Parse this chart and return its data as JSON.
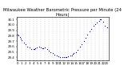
{
  "title": "Milwaukee Weather Barometric Pressure per Minute (24 Hours)",
  "title_fontsize": 3.8,
  "dot_color": "#0000cc",
  "dot_size": 0.8,
  "background_color": "#ffffff",
  "grid_color": "#aaaaaa",
  "xlabel_fontsize": 2.8,
  "ylabel_fontsize": 2.8,
  "ylim": [
    29.35,
    30.15
  ],
  "yticks": [
    29.4,
    29.5,
    29.6,
    29.7,
    29.8,
    29.9,
    30.0,
    30.1
  ],
  "x_hours": [
    0,
    1,
    2,
    3,
    4,
    5,
    6,
    7,
    8,
    9,
    10,
    11,
    12,
    13,
    14,
    15,
    16,
    17,
    18,
    19,
    20,
    21,
    22,
    23
  ],
  "data": [
    [
      0,
      29.82
    ],
    [
      0.25,
      29.8
    ],
    [
      0.5,
      29.78
    ],
    [
      0.75,
      29.75
    ],
    [
      1,
      29.72
    ],
    [
      1.5,
      29.68
    ],
    [
      2,
      29.65
    ],
    [
      2.5,
      29.6
    ],
    [
      3,
      29.58
    ],
    [
      3.5,
      29.56
    ],
    [
      4,
      29.55
    ],
    [
      4.25,
      29.55
    ],
    [
      4.5,
      29.57
    ],
    [
      5,
      29.58
    ],
    [
      5.5,
      29.6
    ],
    [
      6,
      29.58
    ],
    [
      6.25,
      29.57
    ],
    [
      6.5,
      29.57
    ],
    [
      7,
      29.58
    ],
    [
      7.5,
      29.55
    ],
    [
      8,
      29.53
    ],
    [
      8.5,
      29.5
    ],
    [
      9,
      29.48
    ],
    [
      9.5,
      29.45
    ],
    [
      10,
      29.43
    ],
    [
      10.5,
      29.42
    ],
    [
      11,
      29.41
    ],
    [
      11.5,
      29.4
    ],
    [
      12,
      29.4
    ],
    [
      12.25,
      29.41
    ],
    [
      12.5,
      29.41
    ],
    [
      13,
      29.42
    ],
    [
      13.5,
      29.43
    ],
    [
      14,
      29.44
    ],
    [
      14.25,
      29.46
    ],
    [
      14.5,
      29.48
    ],
    [
      15,
      29.5
    ],
    [
      15.5,
      29.54
    ],
    [
      16,
      29.6
    ],
    [
      16.5,
      29.65
    ],
    [
      17,
      29.7
    ],
    [
      17.5,
      29.76
    ],
    [
      18,
      29.82
    ],
    [
      18.5,
      29.88
    ],
    [
      19,
      29.93
    ],
    [
      19.5,
      29.98
    ],
    [
      20,
      30.02
    ],
    [
      20.5,
      30.05
    ],
    [
      21,
      30.08
    ],
    [
      21.25,
      30.1
    ],
    [
      21.5,
      30.11
    ],
    [
      22,
      30.06
    ],
    [
      22.5,
      29.98
    ],
    [
      23,
      29.95
    ]
  ],
  "xtick_labels": [
    "0",
    "1",
    "2",
    "3",
    "4",
    "5",
    "6",
    "7",
    "8",
    "9",
    "10",
    "11",
    "12",
    "13",
    "14",
    "15",
    "16",
    "17",
    "18",
    "19",
    "20",
    "21",
    "22",
    "23"
  ],
  "xlim": [
    -0.3,
    23.5
  ]
}
